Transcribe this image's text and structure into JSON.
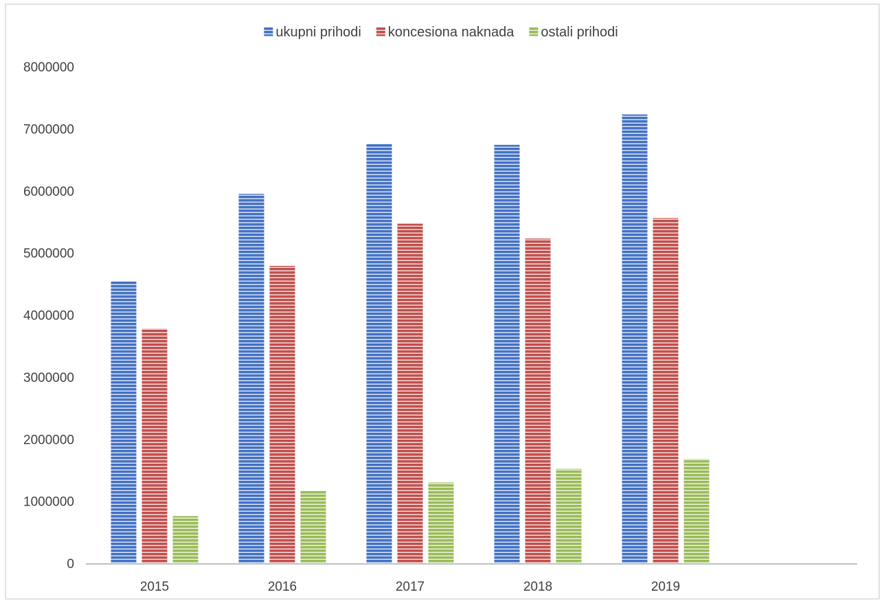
{
  "chart_data": {
    "type": "bar",
    "title": "",
    "xlabel": "",
    "ylabel": "",
    "categories": [
      "2015",
      "2016",
      "2017",
      "2018",
      "2019"
    ],
    "series": [
      {
        "name": "ukupni prihodi",
        "color": "#4472c4",
        "values": [
          4540000,
          5950000,
          6760000,
          6740000,
          7230000
        ]
      },
      {
        "name": "koncesiona naknada",
        "color": "#c0504d",
        "values": [
          3780000,
          4790000,
          5470000,
          5230000,
          5560000
        ]
      },
      {
        "name": "ostali prihodi",
        "color": "#9bbb59",
        "values": [
          760000,
          1170000,
          1300000,
          1520000,
          1680000
        ]
      }
    ],
    "ylim": [
      0,
      8000000
    ],
    "yticks": [
      "0",
      "1000000",
      "2000000",
      "3000000",
      "4000000",
      "5000000",
      "6000000",
      "7000000",
      "8000000"
    ],
    "grid": false,
    "legend_position": "top",
    "bar_pattern": "horizontal-stripes"
  }
}
